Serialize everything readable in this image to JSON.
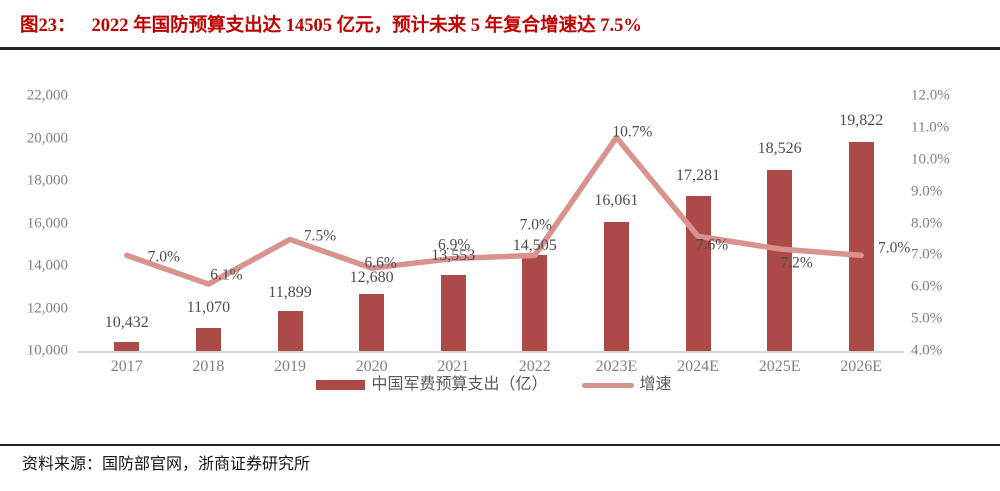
{
  "figure": {
    "tag": "图23：",
    "title": "2022 年国防预算支出达 14505 亿元，预计未来 5 年复合增速达 7.5%"
  },
  "legend": {
    "bar_label": "中国军费预算支出（亿）",
    "line_label": "增速"
  },
  "source": {
    "text": "资料来源：国防部官网，浙商证券研究所"
  },
  "colors": {
    "bar": "#ac4a47",
    "line": "#d9938f",
    "title_red": "#c00000",
    "axis_text": "#808080",
    "value_text": "#4d4d4d",
    "legend_text": "#595959",
    "rule": "#242424",
    "baseline": "#d6d6d6",
    "source_text": "#141414"
  },
  "chart_data": {
    "type": "bar+line combo",
    "title": "2022 年国防预算支出达 14505 亿元，预计未来 5 年复合增速达 7.5%",
    "categories": [
      "2017",
      "2018",
      "2019",
      "2020",
      "2021",
      "2022",
      "2023E",
      "2024E",
      "2025E",
      "2026E"
    ],
    "series": [
      {
        "name": "中国军费预算支出（亿）",
        "type": "bar",
        "axis": "left",
        "values": [
          10432,
          11070,
          11899,
          12680,
          13553,
          14505,
          16061,
          17281,
          18526,
          19822
        ],
        "labels": [
          "10,432",
          "11,070",
          "11,899",
          "12,680",
          "13,553",
          "14,505",
          "16,061",
          "17,281",
          "18,526",
          "19,822"
        ]
      },
      {
        "name": "增速",
        "type": "line",
        "axis": "right",
        "values": [
          7.0,
          6.1,
          7.5,
          6.6,
          6.9,
          7.0,
          10.7,
          7.6,
          7.2,
          7.0
        ],
        "labels": [
          "7.0%",
          "6.1%",
          "7.5%",
          "6.6%",
          "6.9%",
          "7.0%",
          "10.7%",
          "7.6%",
          "7.2%",
          "7.0%"
        ]
      }
    ],
    "left_axis": {
      "min": 10000,
      "max": 22000,
      "tick_values": [
        22000,
        20000,
        18000,
        16000,
        14000,
        12000,
        10000
      ],
      "tick_labels": [
        "22,000",
        "20,000",
        "18,000",
        "16,000",
        "14,000",
        "12,000",
        "10,000"
      ]
    },
    "right_axis": {
      "min": 4,
      "max": 12,
      "tick_values": [
        12,
        11,
        10,
        9,
        8,
        7,
        6,
        5,
        4
      ],
      "tick_labels": [
        "12.0%",
        "11.0%",
        "10.0%",
        "9.0%",
        "8.0%",
        "7.0%",
        "6.0%",
        "5.0%",
        "4.0%"
      ]
    },
    "grid": false,
    "legend_position": "bottom"
  }
}
